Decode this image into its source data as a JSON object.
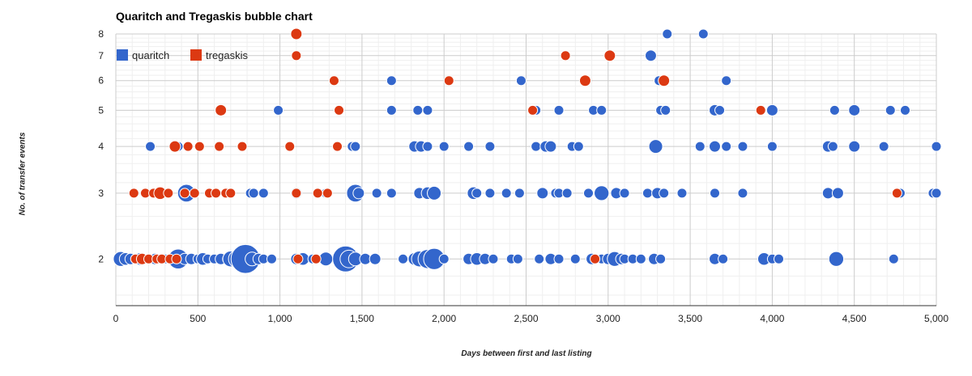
{
  "chart_data": {
    "type": "scatter",
    "subtype": "bubble",
    "title": "Quaritch and Tregaskis bubble chart",
    "xlabel": "Days between first and last listing",
    "ylabel": "No. of transfer events",
    "xlim": [
      0,
      5000
    ],
    "ylim": [
      1.5,
      8
    ],
    "yscale": "log",
    "xticks": [
      0,
      500,
      1000,
      1500,
      2000,
      2500,
      3000,
      3500,
      4000,
      4500,
      5000
    ],
    "xtick_labels": [
      "0",
      "500",
      "1,000",
      "1,500",
      "2,000",
      "2,500",
      "3,000",
      "3,500",
      "4,000",
      "4,500",
      "5,000"
    ],
    "yticks": [
      2,
      3,
      4,
      5,
      6,
      7,
      8
    ],
    "ytick_labels": [
      "2",
      "3",
      "4",
      "5",
      "6",
      "7",
      "8"
    ],
    "grid": true,
    "legend_position": "top-left",
    "bubble_size_unit": "relative (1 = smallest)",
    "series": [
      {
        "name": "quaritch",
        "color": "#3366CC",
        "points": [
          [
            30,
            2,
            6
          ],
          [
            60,
            2,
            4
          ],
          [
            90,
            2,
            3
          ],
          [
            120,
            2,
            2
          ],
          [
            150,
            2,
            4
          ],
          [
            180,
            2,
            2
          ],
          [
            240,
            2,
            3
          ],
          [
            280,
            2,
            2
          ],
          [
            300,
            2,
            2
          ],
          [
            350,
            2,
            2
          ],
          [
            380,
            2,
            12
          ],
          [
            420,
            2,
            3
          ],
          [
            460,
            2,
            3
          ],
          [
            500,
            2,
            2
          ],
          [
            530,
            2,
            4
          ],
          [
            560,
            2,
            2
          ],
          [
            600,
            2,
            2
          ],
          [
            640,
            2,
            3
          ],
          [
            680,
            2,
            2
          ],
          [
            700,
            2,
            7
          ],
          [
            740,
            2,
            9
          ],
          [
            790,
            2,
            28
          ],
          [
            830,
            2,
            5
          ],
          [
            870,
            2,
            3
          ],
          [
            900,
            2,
            2
          ],
          [
            950,
            2,
            2
          ],
          [
            1100,
            2,
            3
          ],
          [
            1140,
            2,
            4
          ],
          [
            1200,
            2,
            2
          ],
          [
            1280,
            2,
            5
          ],
          [
            1400,
            2,
            22
          ],
          [
            1420,
            2,
            9
          ],
          [
            1460,
            2,
            5
          ],
          [
            1520,
            2,
            3
          ],
          [
            1580,
            2,
            3
          ],
          [
            1750,
            2,
            2
          ],
          [
            1820,
            2,
            4
          ],
          [
            1850,
            2,
            7
          ],
          [
            1900,
            2,
            11
          ],
          [
            1940,
            2,
            14
          ],
          [
            2000,
            2,
            2
          ],
          [
            2150,
            2,
            3
          ],
          [
            2200,
            2,
            4
          ],
          [
            2250,
            2,
            3
          ],
          [
            2300,
            2,
            2
          ],
          [
            2410,
            2,
            2
          ],
          [
            2450,
            2,
            2
          ],
          [
            2580,
            2,
            2
          ],
          [
            2650,
            2,
            3
          ],
          [
            2700,
            2,
            2
          ],
          [
            2800,
            2,
            2
          ],
          [
            2900,
            2,
            3
          ],
          [
            2960,
            2,
            2
          ],
          [
            3000,
            2,
            3
          ],
          [
            3040,
            2,
            6
          ],
          [
            3080,
            2,
            3
          ],
          [
            3100,
            2,
            2
          ],
          [
            3150,
            2,
            2
          ],
          [
            3200,
            2,
            2
          ],
          [
            3280,
            2,
            3
          ],
          [
            3320,
            2,
            2
          ],
          [
            3650,
            2,
            3
          ],
          [
            3700,
            2,
            2
          ],
          [
            3950,
            2,
            4
          ],
          [
            4000,
            2,
            2
          ],
          [
            4040,
            2,
            2
          ],
          [
            4390,
            2,
            6
          ],
          [
            4740,
            2,
            2
          ],
          [
            230,
            3,
            2
          ],
          [
            430,
            3,
            9
          ],
          [
            700,
            3,
            2
          ],
          [
            820,
            3,
            2
          ],
          [
            840,
            3,
            2
          ],
          [
            900,
            3,
            2
          ],
          [
            1100,
            3,
            3
          ],
          [
            1280,
            3,
            2
          ],
          [
            1460,
            3,
            9
          ],
          [
            1480,
            3,
            3
          ],
          [
            1590,
            3,
            2
          ],
          [
            1680,
            3,
            2
          ],
          [
            1850,
            3,
            3
          ],
          [
            1900,
            3,
            4
          ],
          [
            1940,
            3,
            5
          ],
          [
            2180,
            3,
            4
          ],
          [
            2200,
            3,
            2
          ],
          [
            2280,
            3,
            2
          ],
          [
            2380,
            3,
            2
          ],
          [
            2460,
            3,
            2
          ],
          [
            2600,
            3,
            3
          ],
          [
            2680,
            3,
            2
          ],
          [
            2700,
            3,
            2
          ],
          [
            2750,
            3,
            2
          ],
          [
            2880,
            3,
            2
          ],
          [
            2960,
            3,
            6
          ],
          [
            3050,
            3,
            3
          ],
          [
            3100,
            3,
            2
          ],
          [
            3240,
            3,
            2
          ],
          [
            3300,
            3,
            3
          ],
          [
            3340,
            3,
            2
          ],
          [
            3450,
            3,
            2
          ],
          [
            3650,
            3,
            2
          ],
          [
            3820,
            3,
            2
          ],
          [
            4340,
            3,
            3
          ],
          [
            4400,
            3,
            3
          ],
          [
            4780,
            3,
            2
          ],
          [
            4980,
            3,
            2
          ],
          [
            5000,
            3,
            2
          ],
          [
            210,
            4,
            2
          ],
          [
            380,
            4,
            2
          ],
          [
            1440,
            4,
            2
          ],
          [
            1460,
            4,
            2
          ],
          [
            1820,
            4,
            3
          ],
          [
            1860,
            4,
            3
          ],
          [
            1900,
            4,
            2
          ],
          [
            2000,
            4,
            2
          ],
          [
            2150,
            4,
            2
          ],
          [
            2280,
            4,
            2
          ],
          [
            2560,
            4,
            2
          ],
          [
            2620,
            4,
            3
          ],
          [
            2650,
            4,
            3
          ],
          [
            2780,
            4,
            2
          ],
          [
            2820,
            4,
            2
          ],
          [
            3290,
            4,
            5
          ],
          [
            3560,
            4,
            2
          ],
          [
            3650,
            4,
            3
          ],
          [
            3720,
            4,
            2
          ],
          [
            3820,
            4,
            2
          ],
          [
            4000,
            4,
            2
          ],
          [
            4340,
            4,
            3
          ],
          [
            4370,
            4,
            2
          ],
          [
            4500,
            4,
            3
          ],
          [
            4680,
            4,
            2
          ],
          [
            5000,
            4,
            2
          ],
          [
            990,
            5,
            2
          ],
          [
            1680,
            5,
            2
          ],
          [
            1840,
            5,
            2
          ],
          [
            1900,
            5,
            2
          ],
          [
            2560,
            5,
            2
          ],
          [
            2700,
            5,
            2
          ],
          [
            2910,
            5,
            2
          ],
          [
            2960,
            5,
            2
          ],
          [
            3320,
            5,
            2
          ],
          [
            3350,
            5,
            2
          ],
          [
            3650,
            5,
            3
          ],
          [
            3680,
            5,
            2
          ],
          [
            4000,
            5,
            3
          ],
          [
            4380,
            5,
            2
          ],
          [
            4500,
            5,
            3
          ],
          [
            4720,
            5,
            2
          ],
          [
            4810,
            5,
            2
          ],
          [
            1680,
            6,
            2
          ],
          [
            2470,
            6,
            2
          ],
          [
            3310,
            6,
            2
          ],
          [
            3720,
            6,
            2
          ],
          [
            3260,
            7,
            3
          ],
          [
            3360,
            8,
            2
          ],
          [
            3580,
            8,
            2
          ]
        ]
      },
      {
        "name": "tregaskis",
        "color": "#DC3912",
        "points": [
          [
            120,
            2,
            2
          ],
          [
            160,
            2,
            3
          ],
          [
            200,
            2,
            2
          ],
          [
            250,
            2,
            2
          ],
          [
            280,
            2,
            2
          ],
          [
            330,
            2,
            2
          ],
          [
            370,
            2,
            2
          ],
          [
            1110,
            2,
            2
          ],
          [
            1220,
            2,
            2
          ],
          [
            2920,
            2,
            2
          ],
          [
            110,
            3,
            2
          ],
          [
            180,
            3,
            2
          ],
          [
            230,
            3,
            2
          ],
          [
            270,
            3,
            4
          ],
          [
            320,
            3,
            2
          ],
          [
            420,
            3,
            2
          ],
          [
            480,
            3,
            2
          ],
          [
            570,
            3,
            2
          ],
          [
            610,
            3,
            2
          ],
          [
            670,
            3,
            2
          ],
          [
            700,
            3,
            2
          ],
          [
            1100,
            3,
            2
          ],
          [
            1230,
            3,
            2
          ],
          [
            1290,
            3,
            2
          ],
          [
            4760,
            3,
            2
          ],
          [
            360,
            4,
            3
          ],
          [
            440,
            4,
            2
          ],
          [
            510,
            4,
            2
          ],
          [
            630,
            4,
            2
          ],
          [
            770,
            4,
            2
          ],
          [
            1060,
            4,
            2
          ],
          [
            1350,
            4,
            2
          ],
          [
            640,
            5,
            3
          ],
          [
            1360,
            5,
            2
          ],
          [
            2540,
            5,
            2
          ],
          [
            3930,
            5,
            2
          ],
          [
            1330,
            6,
            2
          ],
          [
            2030,
            6,
            2
          ],
          [
            2860,
            6,
            3
          ],
          [
            3340,
            6,
            3
          ],
          [
            1100,
            7,
            2
          ],
          [
            2740,
            7,
            2
          ],
          [
            3010,
            7,
            3
          ],
          [
            1100,
            8,
            3
          ]
        ]
      }
    ]
  }
}
